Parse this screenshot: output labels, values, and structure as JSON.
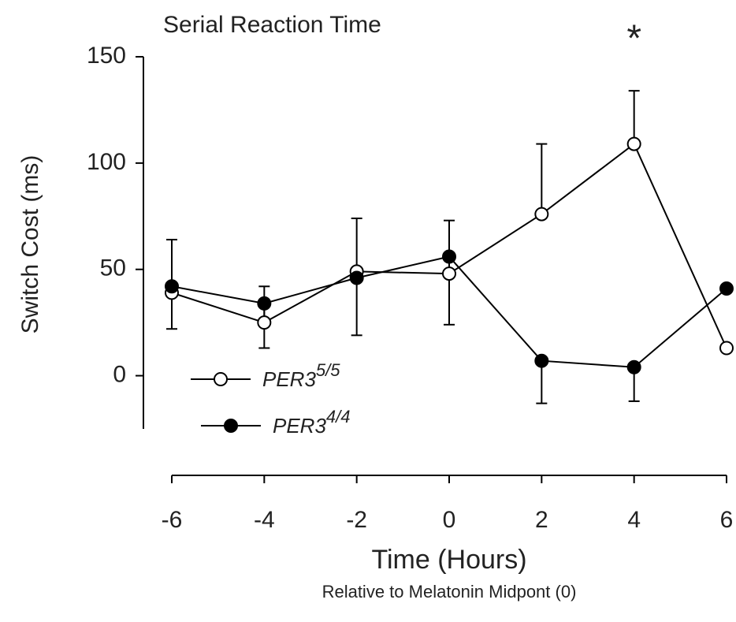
{
  "chart_data": {
    "type": "line",
    "title": "Serial Reaction Time",
    "y_label": "Switch Cost (ms)",
    "x_label": "Time (Hours)",
    "x_sublabel": "Relative to Melatonin Midpont (0)",
    "annotation": {
      "text": "*",
      "x": 4
    },
    "x": [
      -6,
      -4,
      -2,
      0,
      2,
      4,
      6
    ],
    "xlim": [
      -6,
      6
    ],
    "xticks": [
      -6,
      -4,
      -2,
      0,
      2,
      4,
      6
    ],
    "ylim": [
      -25,
      150
    ],
    "yticks": [
      0,
      50,
      100,
      150
    ],
    "series": [
      {
        "name": "PER3",
        "superscript": "5/5",
        "color": "#000000",
        "marker": "open",
        "values": [
          39,
          25,
          49,
          48,
          76,
          109,
          13
        ],
        "errors": [
          25,
          17,
          25,
          25,
          33,
          25,
          null
        ],
        "error_side": "up"
      },
      {
        "name": "PER3",
        "superscript": "4/4",
        "color": "#000000",
        "marker": "filled",
        "values": [
          42,
          34,
          46,
          56,
          7,
          4,
          41
        ],
        "errors": [
          20,
          21,
          27,
          32,
          20,
          16,
          null
        ],
        "error_side": "down"
      }
    ]
  }
}
